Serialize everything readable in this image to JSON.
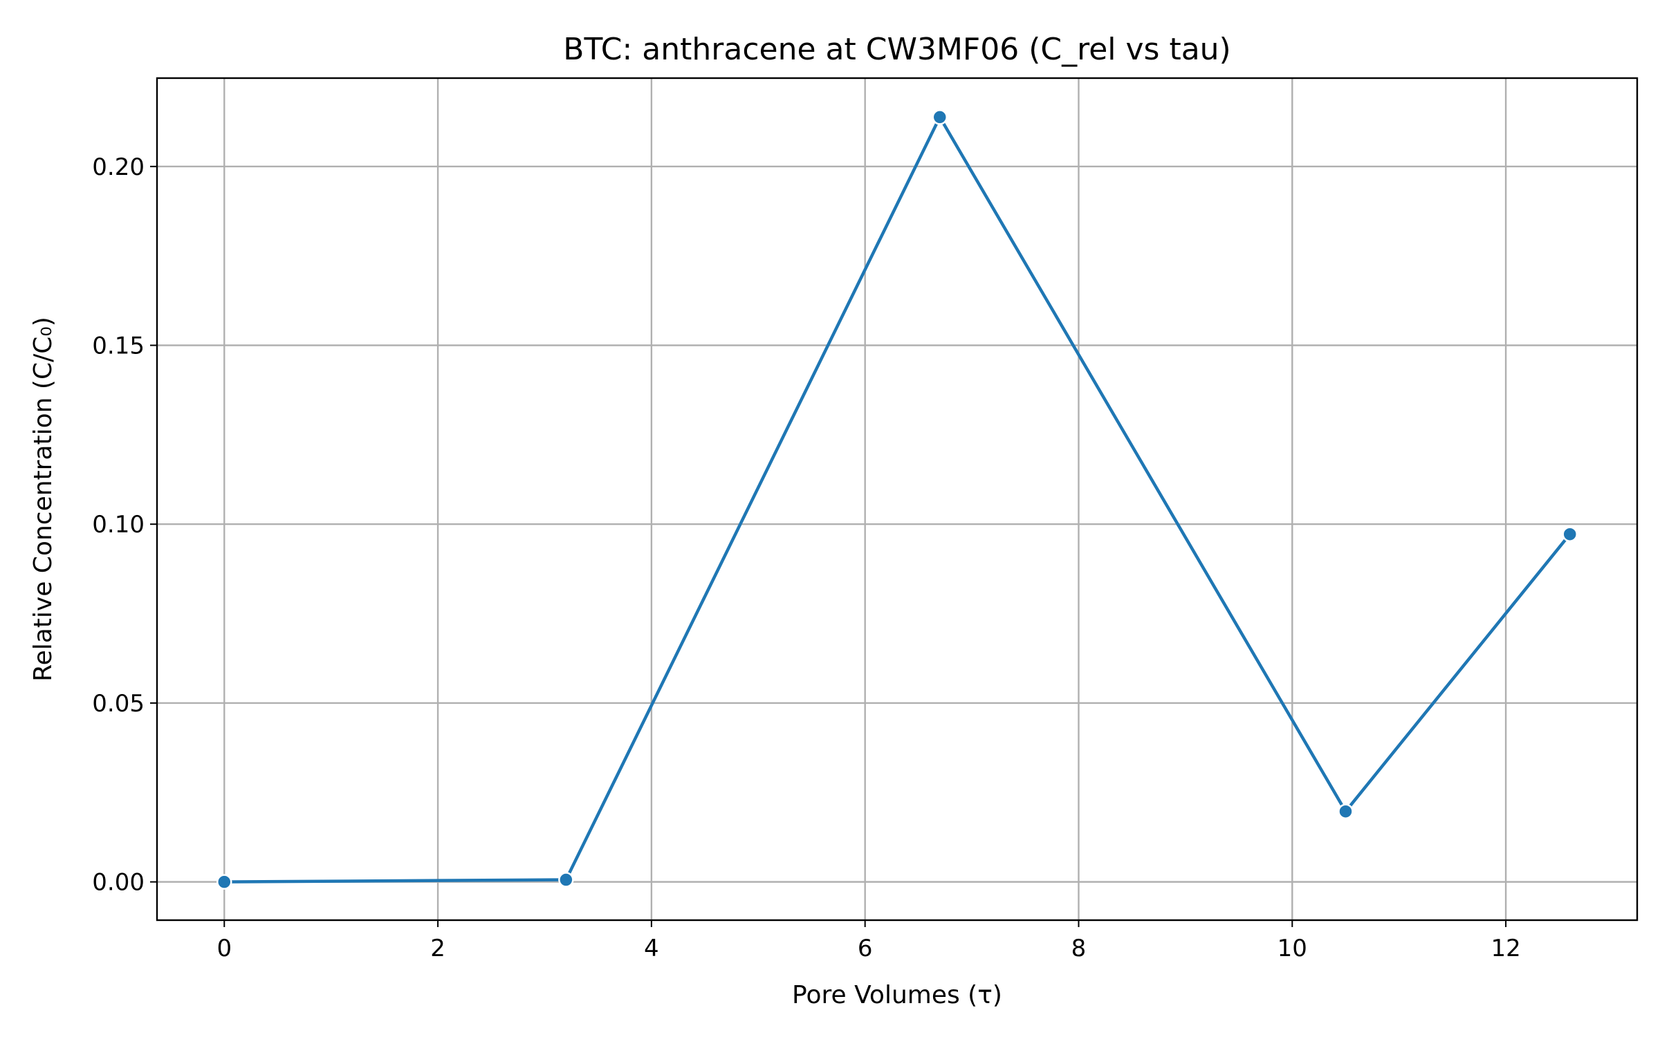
{
  "chart_data": {
    "type": "line",
    "title": "BTC: anthracene at CW3MF06 (C_rel vs tau)",
    "xlabel": "Pore Volumes (τ)",
    "ylabel": "Relative Concentration (C/C₀)",
    "xlim": [
      -0.63,
      13.23
    ],
    "ylim": [
      -0.0107,
      0.2247
    ],
    "xticks": [
      0,
      2,
      4,
      6,
      8,
      10,
      12
    ],
    "xtick_labels": [
      "0",
      "2",
      "4",
      "6",
      "8",
      "10",
      "12"
    ],
    "yticks": [
      0.0,
      0.05,
      0.1,
      0.15,
      0.2
    ],
    "ytick_labels": [
      "0.00",
      "0.05",
      "0.10",
      "0.15",
      "0.20"
    ],
    "grid": true,
    "legend": "none",
    "color": "#1f77b4",
    "series": [
      {
        "x": [
          0,
          3.2,
          6.7,
          10.5,
          12.6
        ],
        "y": [
          0.0,
          0.0006,
          0.2138,
          0.0197,
          0.0972
        ]
      }
    ]
  }
}
